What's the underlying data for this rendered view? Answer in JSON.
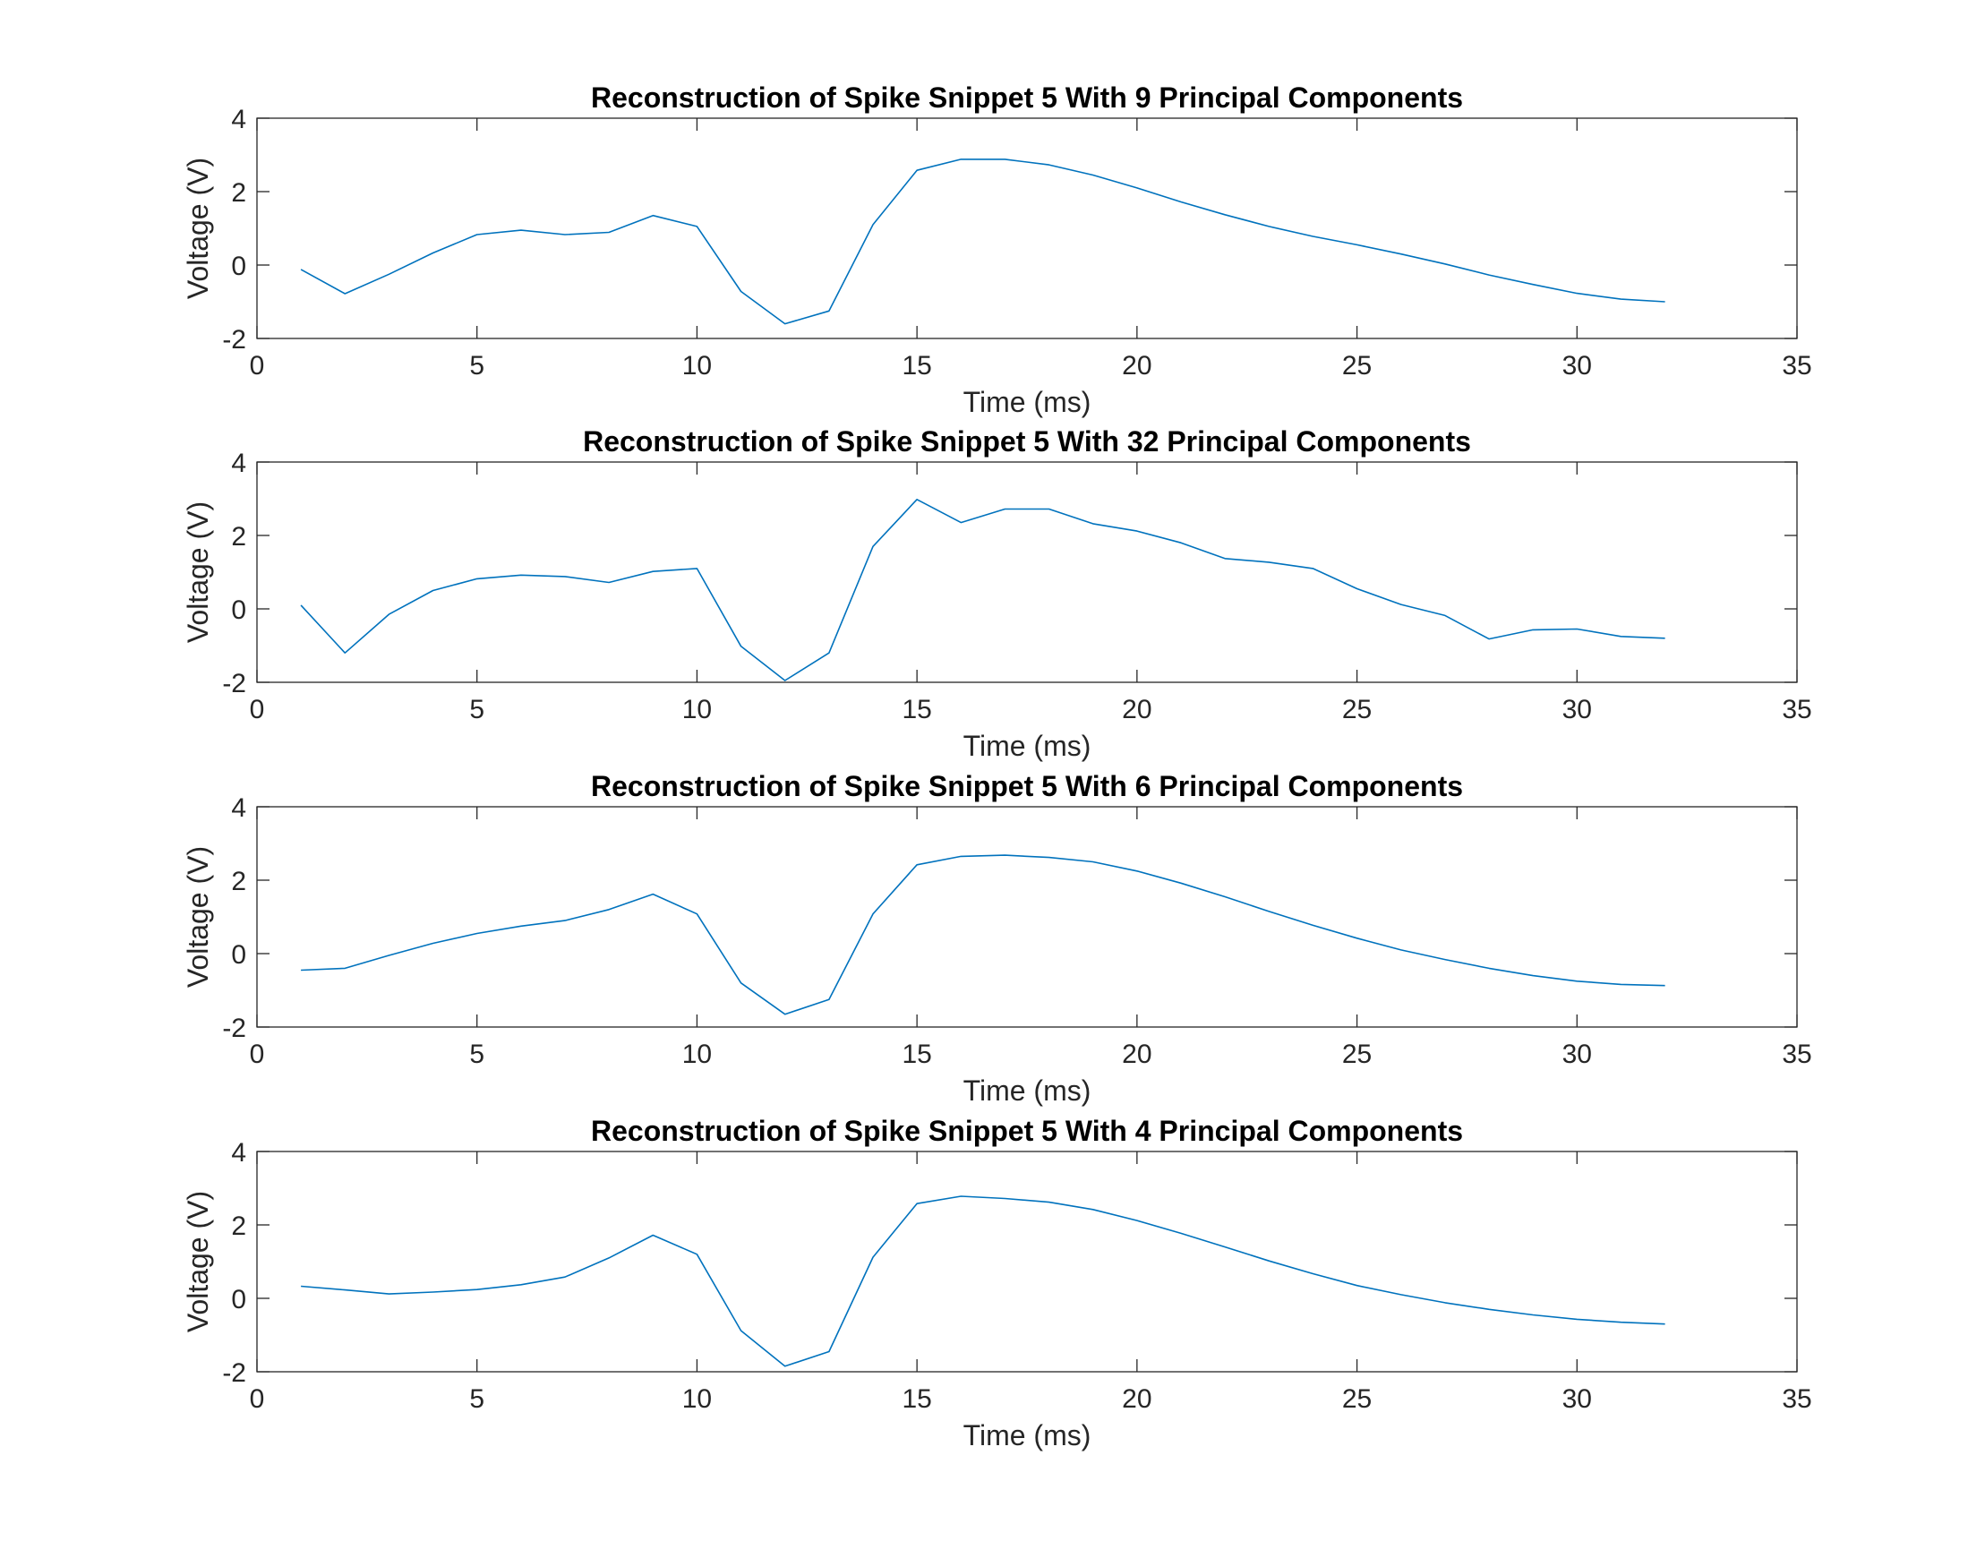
{
  "chart_data": [
    {
      "type": "line",
      "title": "Reconstruction of Spike Snippet 5 With 9 Principal Components",
      "xlabel": "Time (ms)",
      "ylabel": "Voltage (V)",
      "xlim": [
        0,
        35
      ],
      "ylim": [
        -2,
        4
      ],
      "xticks": [
        0,
        5,
        10,
        15,
        20,
        25,
        30,
        35
      ],
      "yticks": [
        -2,
        0,
        2,
        4
      ],
      "grid": false,
      "color": "#0072bd",
      "x": [
        1,
        2,
        3,
        4,
        5,
        6,
        7,
        8,
        9,
        10,
        11,
        12,
        13,
        14,
        15,
        16,
        17,
        18,
        19,
        20,
        21,
        22,
        23,
        24,
        25,
        26,
        27,
        28,
        29,
        30,
        31,
        32
      ],
      "values": [
        -0.12,
        -0.78,
        -0.25,
        0.33,
        0.83,
        0.95,
        0.83,
        0.89,
        1.35,
        1.05,
        -0.72,
        -1.6,
        -1.25,
        1.1,
        2.58,
        2.88,
        2.88,
        2.73,
        2.45,
        2.1,
        1.72,
        1.37,
        1.05,
        0.78,
        0.55,
        0.3,
        0.03,
        -0.27,
        -0.53,
        -0.77,
        -0.93,
        -1.0
      ]
    },
    {
      "type": "line",
      "title": "Reconstruction of Spike Snippet 5 With 32 Principal Components",
      "xlabel": "Time (ms)",
      "ylabel": "Voltage (V)",
      "xlim": [
        0,
        35
      ],
      "ylim": [
        -2,
        4
      ],
      "xticks": [
        0,
        5,
        10,
        15,
        20,
        25,
        30,
        35
      ],
      "yticks": [
        -2,
        0,
        2,
        4
      ],
      "grid": false,
      "color": "#0072bd",
      "x": [
        1,
        2,
        3,
        4,
        5,
        6,
        7,
        8,
        9,
        10,
        11,
        12,
        13,
        14,
        15,
        16,
        17,
        18,
        19,
        20,
        21,
        22,
        23,
        24,
        25,
        26,
        27,
        28,
        29,
        30,
        31,
        32
      ],
      "values": [
        0.1,
        -1.2,
        -0.15,
        0.5,
        0.82,
        0.92,
        0.88,
        0.72,
        1.02,
        1.1,
        -1.02,
        -1.95,
        -1.2,
        1.7,
        2.98,
        2.35,
        2.72,
        2.72,
        2.32,
        2.12,
        1.8,
        1.37,
        1.27,
        1.1,
        0.55,
        0.12,
        -0.18,
        -0.82,
        -0.57,
        -0.55,
        -0.75,
        -0.8
      ]
    },
    {
      "type": "line",
      "title": "Reconstruction of Spike Snippet 5 With 6 Principal Components",
      "xlabel": "Time (ms)",
      "ylabel": "Voltage (V)",
      "xlim": [
        0,
        35
      ],
      "ylim": [
        -2,
        4
      ],
      "xticks": [
        0,
        5,
        10,
        15,
        20,
        25,
        30,
        35
      ],
      "yticks": [
        -2,
        0,
        2,
        4
      ],
      "grid": false,
      "color": "#0072bd",
      "x": [
        1,
        2,
        3,
        4,
        5,
        6,
        7,
        8,
        9,
        10,
        11,
        12,
        13,
        14,
        15,
        16,
        17,
        18,
        19,
        20,
        21,
        22,
        23,
        24,
        25,
        26,
        27,
        28,
        29,
        30,
        31,
        32
      ],
      "values": [
        -0.45,
        -0.4,
        -0.05,
        0.28,
        0.55,
        0.75,
        0.9,
        1.2,
        1.62,
        1.08,
        -0.8,
        -1.65,
        -1.25,
        1.08,
        2.42,
        2.65,
        2.68,
        2.62,
        2.5,
        2.25,
        1.92,
        1.55,
        1.15,
        0.77,
        0.42,
        0.1,
        -0.16,
        -0.4,
        -0.6,
        -0.75,
        -0.84,
        -0.87
      ]
    },
    {
      "type": "line",
      "title": "Reconstruction of Spike Snippet 5 With 4 Principal Components",
      "xlabel": "Time (ms)",
      "ylabel": "Voltage (V)",
      "xlim": [
        0,
        35
      ],
      "ylim": [
        -2,
        4
      ],
      "xticks": [
        0,
        5,
        10,
        15,
        20,
        25,
        30,
        35
      ],
      "yticks": [
        -2,
        0,
        2,
        4
      ],
      "grid": false,
      "color": "#0072bd",
      "x": [
        1,
        2,
        3,
        4,
        5,
        6,
        7,
        8,
        9,
        10,
        11,
        12,
        13,
        14,
        15,
        16,
        17,
        18,
        19,
        20,
        21,
        22,
        23,
        24,
        25,
        26,
        27,
        28,
        29,
        30,
        31,
        32
      ],
      "values": [
        0.33,
        0.23,
        0.12,
        0.17,
        0.24,
        0.37,
        0.58,
        1.1,
        1.72,
        1.2,
        -0.88,
        -1.85,
        -1.45,
        1.12,
        2.58,
        2.78,
        2.72,
        2.62,
        2.42,
        2.12,
        1.77,
        1.4,
        1.02,
        0.67,
        0.35,
        0.1,
        -0.12,
        -0.3,
        -0.45,
        -0.57,
        -0.65,
        -0.7
      ]
    }
  ]
}
